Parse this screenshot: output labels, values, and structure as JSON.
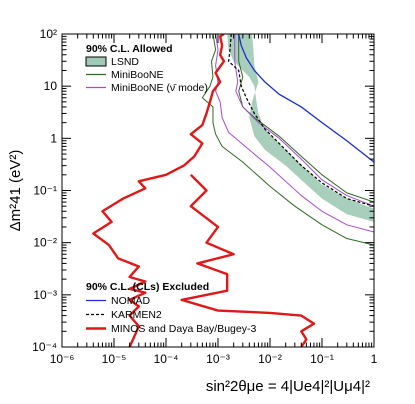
{
  "chart_data": {
    "type": "line",
    "xscale": "log",
    "yscale": "log",
    "xlim": [
      1e-06,
      1
    ],
    "ylim": [
      0.0001,
      100
    ],
    "xlabel": "sin²2θμe = 4|Ue4|²|Uμ4|²",
    "ylabel": "Δm²41 (eV²)",
    "x_ticks": [
      "10⁻⁶",
      "10⁻⁵",
      "10⁻⁴",
      "10⁻³",
      "10⁻²",
      "10⁻¹",
      "1"
    ],
    "y_ticks": [
      "10⁻⁴",
      "10⁻³",
      "10⁻²",
      "10⁻¹",
      "1",
      "10",
      "10²"
    ],
    "x_tick_values": [
      1e-06,
      1e-05,
      0.0001,
      0.001,
      0.01,
      0.1,
      1
    ],
    "y_tick_values": [
      0.0001,
      0.001,
      0.01,
      0.1,
      1,
      10,
      100
    ],
    "legend_allowed": {
      "title": "90% C.L. Allowed",
      "entries": [
        {
          "label": "LSND",
          "key": "lsnd"
        },
        {
          "label": "MiniBooNE",
          "key": "miniboone"
        },
        {
          "label": "MiniBooNE (ν̄ mode)",
          "key": "miniboone_anti"
        }
      ],
      "placement": "top-left"
    },
    "legend_excluded": {
      "title": "90% C.L. (CLs) Excluded",
      "entries": [
        {
          "label": "NOMAD",
          "key": "nomad"
        },
        {
          "label": "KARMEN2",
          "key": "karmen2"
        },
        {
          "label": "MINOS and Daya Bay/Bugey-3",
          "key": "minos"
        }
      ],
      "placement": "bottom-left"
    },
    "colors": {
      "lsnd_fill": "#9fc9b5",
      "lsnd_edge": "#5f8a75",
      "miniboone": "#2e6b1e",
      "miniboone_anti": "#a44bd8",
      "nomad": "#1a2fd6",
      "karmen2": "#000000",
      "minos": "#e01818"
    },
    "series": [
      {
        "key": "lsnd",
        "type": "band",
        "upper": [
          [
            0.0015,
            100
          ],
          [
            0.0016,
            50
          ],
          [
            0.002,
            30
          ],
          [
            0.003,
            20
          ],
          [
            0.004,
            15
          ],
          [
            0.005,
            10
          ],
          [
            0.0055,
            5
          ],
          [
            0.006,
            3
          ],
          [
            0.007,
            2
          ],
          [
            0.009,
            1.3
          ],
          [
            0.02,
            0.6
          ],
          [
            0.05,
            0.25
          ],
          [
            0.1,
            0.13
          ],
          [
            0.3,
            0.07
          ],
          [
            1,
            0.045
          ]
        ],
        "lower": [
          [
            0.0045,
            100
          ],
          [
            0.0048,
            50
          ],
          [
            0.005,
            25
          ],
          [
            0.006,
            12
          ],
          [
            0.0045,
            5
          ],
          [
            0.004,
            2.5
          ],
          [
            0.005,
            1.1
          ],
          [
            0.008,
            0.6
          ],
          [
            0.02,
            0.3
          ],
          [
            0.05,
            0.13
          ],
          [
            0.1,
            0.07
          ],
          [
            0.3,
            0.035
          ],
          [
            1,
            0.025
          ]
        ]
      },
      {
        "key": "miniboone",
        "type": "line",
        "points": [
          [
            0.0008,
            100
          ],
          [
            0.0009,
            50
          ],
          [
            0.00075,
            30
          ],
          [
            0.0008,
            15
          ],
          [
            0.0007,
            10
          ],
          [
            0.0005,
            6
          ],
          [
            0.0008,
            4
          ],
          [
            0.0008,
            2
          ],
          [
            0.0009,
            1.2
          ],
          [
            0.0012,
            0.7
          ],
          [
            0.003,
            0.35
          ],
          [
            0.01,
            0.12
          ],
          [
            0.03,
            0.05
          ],
          [
            0.1,
            0.022
          ],
          [
            0.3,
            0.012
          ],
          [
            1,
            0.009
          ]
        ]
      },
      {
        "key": "miniboone",
        "type": "line",
        "points": [
          [
            0.0025,
            100
          ],
          [
            0.0025,
            30
          ],
          [
            0.003,
            15
          ],
          [
            0.0025,
            8
          ],
          [
            0.003,
            4
          ],
          [
            0.005,
            2.5
          ],
          [
            0.015,
            1.1
          ],
          [
            0.04,
            0.45
          ],
          [
            0.1,
            0.2
          ],
          [
            0.3,
            0.09
          ],
          [
            1,
            0.06
          ]
        ]
      },
      {
        "key": "miniboone_anti",
        "type": "line",
        "points": [
          [
            0.0009,
            100
          ],
          [
            0.001,
            50
          ],
          [
            0.0009,
            25
          ],
          [
            0.001,
            12
          ],
          [
            0.0009,
            8
          ],
          [
            0.0011,
            5
          ],
          [
            0.0012,
            2.5
          ],
          [
            0.0016,
            1.3
          ],
          [
            0.004,
            0.6
          ],
          [
            0.01,
            0.28
          ],
          [
            0.04,
            0.08
          ],
          [
            0.1,
            0.04
          ],
          [
            0.3,
            0.022
          ],
          [
            1,
            0.016
          ]
        ]
      },
      {
        "key": "miniboone_anti",
        "type": "line",
        "points": [
          [
            0.0021,
            100
          ],
          [
            0.0021,
            30
          ],
          [
            0.0024,
            12
          ],
          [
            0.0022,
            8
          ],
          [
            0.003,
            4
          ],
          [
            0.006,
            2
          ],
          [
            0.015,
            1
          ],
          [
            0.04,
            0.4
          ],
          [
            0.1,
            0.16
          ],
          [
            0.3,
            0.08
          ],
          [
            1,
            0.05
          ]
        ]
      },
      {
        "key": "nomad",
        "type": "line",
        "points": [
          [
            0.0025,
            100
          ],
          [
            0.0028,
            60
          ],
          [
            0.0035,
            35
          ],
          [
            0.005,
            20
          ],
          [
            0.008,
            12
          ],
          [
            0.015,
            7
          ],
          [
            0.04,
            4
          ],
          [
            0.1,
            2
          ],
          [
            0.3,
            0.9
          ],
          [
            1,
            0.35
          ]
        ]
      },
      {
        "key": "karmen2",
        "type": "line",
        "points": [
          [
            0.0018,
            100
          ],
          [
            0.0017,
            50
          ],
          [
            0.0016,
            30
          ],
          [
            0.0025,
            20
          ],
          [
            0.0028,
            10
          ],
          [
            0.0035,
            6
          ],
          [
            0.005,
            3
          ],
          [
            0.008,
            1.5
          ],
          [
            0.015,
            0.8
          ],
          [
            0.04,
            0.3
          ],
          [
            0.1,
            0.14
          ],
          [
            0.3,
            0.07
          ],
          [
            1,
            0.05
          ]
        ]
      },
      {
        "key": "minos",
        "type": "line",
        "points": [
          [
            0.0013,
            100
          ],
          [
            0.0011,
            90
          ],
          [
            0.0012,
            60
          ],
          [
            0.0011,
            40
          ],
          [
            0.0013,
            30
          ],
          [
            0.0009,
            18
          ],
          [
            0.0011,
            12
          ],
          [
            0.0008,
            8
          ],
          [
            0.0007,
            5
          ],
          [
            0.0006,
            3
          ],
          [
            0.0005,
            1.8
          ],
          [
            0.0003,
            1.2
          ],
          [
            0.0005,
            0.8
          ],
          [
            0.00035,
            0.45
          ],
          [
            0.00022,
            0.3
          ],
          [
            0.0001,
            0.2
          ],
          [
            3e-05,
            0.15
          ],
          [
            4e-05,
            0.11
          ],
          [
            1.5e-05,
            0.07
          ],
          [
            6e-06,
            0.04
          ],
          [
            9e-06,
            0.025
          ],
          [
            4e-06,
            0.015
          ],
          [
            8e-06,
            0.009
          ],
          [
            1.2e-05,
            0.005
          ],
          [
            3e-05,
            0.0035
          ],
          [
            2e-05,
            0.0022
          ],
          [
            4e-05,
            0.0018
          ],
          [
            2e-05,
            0.0013
          ],
          [
            4e-05,
            0.0011
          ],
          [
            2e-05,
            0.0008
          ],
          [
            3e-05,
            0.0006
          ],
          [
            2e-05,
            0.0004
          ],
          [
            3e-05,
            0.00025
          ],
          [
            2e-05,
            0.0001
          ]
        ]
      },
      {
        "key": "minos",
        "type": "line",
        "points": [
          [
            0.04,
            0.0001
          ],
          [
            0.05,
            0.00014
          ],
          [
            0.04,
            0.0002
          ],
          [
            0.07,
            0.00028
          ],
          [
            0.04,
            0.0004
          ],
          [
            0.01,
            0.00045
          ],
          [
            0.001,
            0.0005
          ],
          [
            0.0002,
            0.0008
          ],
          [
            0.0015,
            0.0012
          ],
          [
            0.0015,
            0.0025
          ],
          [
            0.0004,
            0.004
          ],
          [
            0.002,
            0.006
          ],
          [
            0.0006,
            0.01
          ],
          [
            0.001,
            0.02
          ],
          [
            0.0003,
            0.05
          ],
          [
            0.0006,
            0.1
          ],
          [
            0.0003,
            0.2
          ]
        ]
      }
    ]
  }
}
